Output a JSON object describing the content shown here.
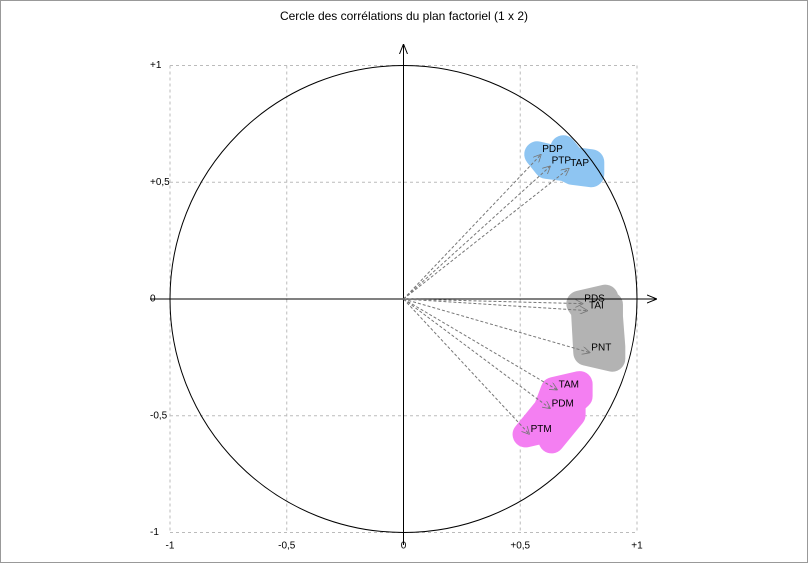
{
  "chart_data": {
    "type": "scatter",
    "title": "Cercle des corrélations du plan factoriel (1 x 2)",
    "xlim": [
      -1,
      1
    ],
    "ylim": [
      -1,
      1
    ],
    "xticks": [
      -1,
      {
        "value": -0.5,
        "label": "-0,5"
      },
      0,
      {
        "value": 0.5,
        "label": "+0,5"
      },
      {
        "value": 1,
        "label": "+1"
      }
    ],
    "yticks": [
      -1,
      {
        "value": -0.5,
        "label": "-0,5"
      },
      0,
      {
        "value": 0.5,
        "label": "+0,5"
      },
      {
        "value": 1,
        "label": "+1"
      }
    ],
    "grid": true,
    "series": [
      {
        "color": "#8ec5f2",
        "labels": [
          "PDP",
          "PTP",
          "TAP"
        ],
        "x": [
          0.59,
          0.63,
          0.71
        ],
        "values": [
          0.62,
          0.57,
          0.56
        ]
      },
      {
        "color": "#b3b3b3",
        "labels": [
          "PDS",
          "TAI",
          "PNT"
        ],
        "x": [
          0.77,
          0.79,
          0.8
        ],
        "values": [
          -0.02,
          -0.05,
          -0.23
        ]
      },
      {
        "color": "#f47ff2",
        "labels": [
          "TAM",
          "PDM",
          "PTM"
        ],
        "x": [
          0.66,
          0.63,
          0.54
        ],
        "values": [
          -0.39,
          -0.47,
          -0.58
        ]
      }
    ]
  }
}
